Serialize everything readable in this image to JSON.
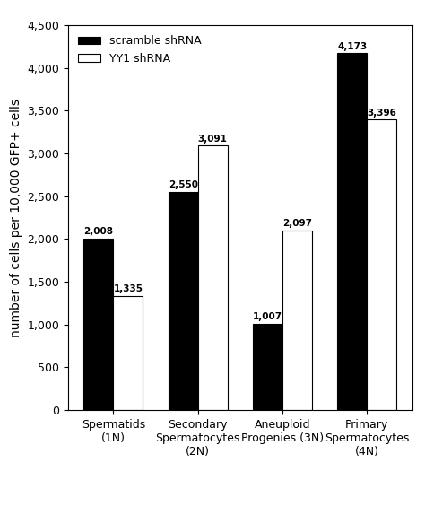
{
  "chart_data": {
    "type": "bar",
    "categories": [
      "Spermatids\n(1N)",
      "Secondary\nSpermatocytes\n(2N)",
      "Aneuploid\nProgenies (3N)",
      "Primary\nSpermatocytes\n(4N)"
    ],
    "series": [
      {
        "name": "scramble shRNA",
        "color": "#000000",
        "values": [
          2008,
          2550,
          1007,
          4173
        ],
        "value_labels": [
          "2,008",
          "2,550",
          "1,007",
          "4,173"
        ]
      },
      {
        "name": "YY1 shRNA",
        "color": "#ffffff",
        "values": [
          1335,
          3091,
          2097,
          3396
        ],
        "value_labels": [
          "1,335",
          "3,091",
          "2,097",
          "3,396"
        ]
      }
    ],
    "y_label": "number of cells per 10,000 GFP+ cells",
    "ylim": [
      0,
      4500
    ],
    "yticks": [
      0,
      500,
      {
        "value": 1000,
        "label": "1,000"
      },
      {
        "value": 1500,
        "label": "1,500"
      },
      {
        "value": 2000,
        "label": "2,000"
      },
      {
        "value": 2500,
        "label": "2,500"
      },
      {
        "value": 3000,
        "label": "3,000"
      },
      {
        "value": 3500,
        "label": "3,500"
      },
      {
        "value": 4000,
        "label": "4,000"
      },
      {
        "value": 4500,
        "label": "4,500"
      }
    ],
    "legend": "upper left",
    "data_labels": true,
    "grid": false
  }
}
